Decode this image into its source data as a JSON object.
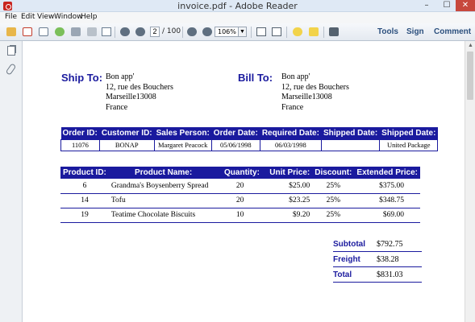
{
  "window": {
    "title": "invoice.pdf - Adobe Reader",
    "minimize": "–",
    "maximize": "☐",
    "close": "✕"
  },
  "menu": [
    "File",
    "Edit",
    "View",
    "Window",
    "Help"
  ],
  "toolbar": {
    "page_current": "2",
    "page_total": "/ 100",
    "zoom": "106%",
    "zoom_dropdown": "▼",
    "tools": "Tools",
    "sign": "Sign",
    "comment": "Comment",
    "icons": [
      "open-icon",
      "create-pdf-icon",
      "edit-icon",
      "cloud-icon",
      "save-icon",
      "print-icon",
      "email-icon",
      "previous-page-icon",
      "next-page-icon",
      "zoom-out-icon",
      "zoom-in-icon",
      "fit-page-icon",
      "fit-width-icon",
      "comment-note-icon",
      "highlight-icon",
      "expand-icon"
    ]
  },
  "scroll": {
    "up": "▲"
  },
  "invoice": {
    "ship_to": {
      "heading": "Ship To:",
      "lines": [
        "Bon app'",
        "12, rue des Bouchers",
        "Marseille13008",
        "France"
      ]
    },
    "bill_to": {
      "heading": "Bill To:",
      "lines": [
        "Bon app'",
        "12, rue des Bouchers",
        "Marseille13008",
        "France"
      ]
    },
    "order": {
      "headers": [
        "Order ID:",
        "Customer ID:",
        "Sales Person:",
        "Order Date:",
        "Required Date:",
        "Shipped Date:",
        "Shipped Date:"
      ],
      "values": [
        "11076",
        "BONAP",
        "Margaret Peacock",
        "05/06/1998",
        "06/03/1998",
        "",
        "United Package"
      ]
    },
    "products": {
      "headers": [
        "Product ID:",
        "Product Name:",
        "Quantity:",
        "Unit Price:",
        "Discount:",
        "Extended Price:"
      ],
      "rows": [
        [
          "6",
          "Grandma's Boysenberry Spread",
          "20",
          "$25.00",
          "25%",
          "$375.00"
        ],
        [
          "14",
          "Tofu",
          "20",
          "$23.25",
          "25%",
          "$348.75"
        ],
        [
          "19",
          "Teatime Chocolate Biscuits",
          "10",
          "$9.20",
          "25%",
          "$69.00"
        ]
      ]
    },
    "totals": [
      {
        "label": "Subtotal",
        "value": "$792.75"
      },
      {
        "label": "Freight",
        "value": "$38.28"
      },
      {
        "label": "Total",
        "value": "$831.03"
      }
    ]
  }
}
